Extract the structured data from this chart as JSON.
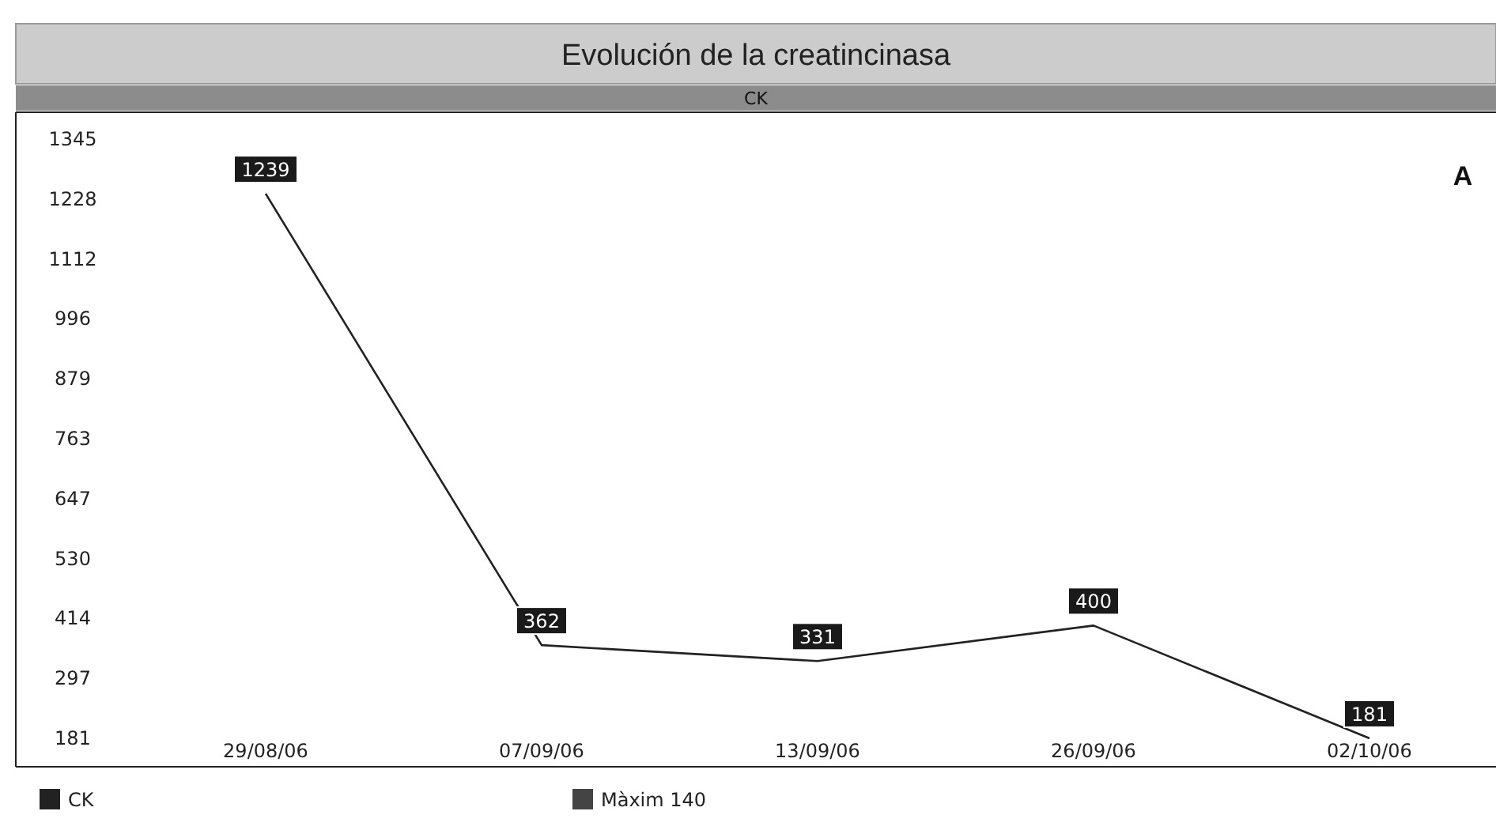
{
  "chart_data": {
    "type": "line",
    "title": "Evolución de la creatincinasa",
    "subtitle": "CK",
    "annotations": [
      "A"
    ],
    "categories": [
      "29/08/06",
      "07/09/06",
      "13/09/06",
      "26/09/06",
      "02/10/06"
    ],
    "series": [
      {
        "name": "CK",
        "color": "#222222",
        "values": [
          1239,
          362,
          331,
          400,
          181
        ]
      },
      {
        "name": "Màxim 140",
        "color": "#444444",
        "values": [
          null,
          null,
          null,
          null,
          null
        ]
      }
    ],
    "ylim": [
      181,
      1345
    ],
    "yticks": [
      181,
      297,
      414,
      530,
      647,
      763,
      879,
      996,
      1112,
      1228,
      1345
    ],
    "data_labels": true,
    "grid": false,
    "legend": "bottom",
    "marker": "none",
    "line_style": "solid"
  }
}
